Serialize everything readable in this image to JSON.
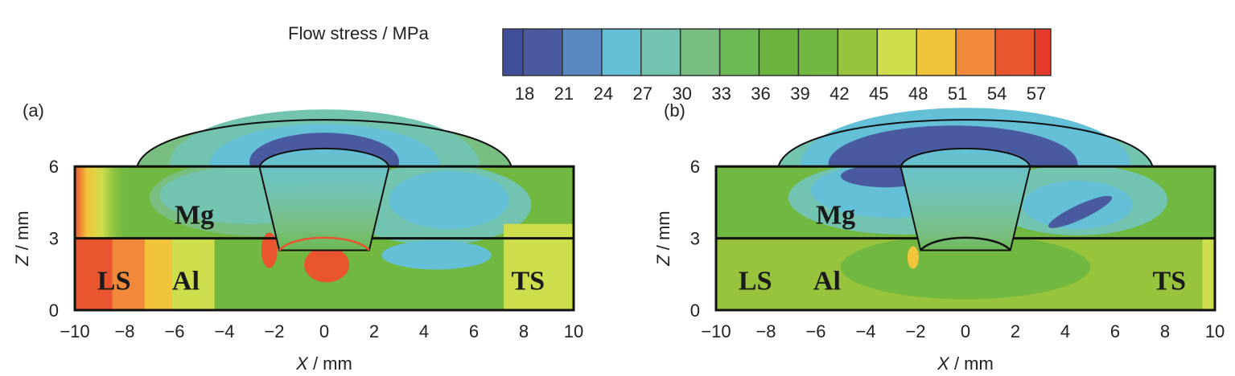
{
  "chart_data": {
    "type": "heatmap",
    "title": "Flow stress / MPa",
    "colorbar": {
      "label": "Flow stress / MPa",
      "ticks": [
        18,
        21,
        24,
        27,
        30,
        33,
        36,
        39,
        42,
        45,
        48,
        51,
        54,
        57
      ],
      "colors": [
        "#3f4f9a",
        "#4a5aa0",
        "#5a88c0",
        "#63c0d6",
        "#72c3b0",
        "#78be80",
        "#6cba55",
        "#6ab43e",
        "#70b840",
        "#98c33c",
        "#cddd4c",
        "#f2c43c",
        "#f08a3a",
        "#e8552f",
        "#e33a2c"
      ]
    },
    "panels": [
      {
        "label": "(a)",
        "xlabel_var": "X",
        "xlabel_unit": " / mm",
        "ylabel_var": "Z",
        "ylabel_unit": " / mm",
        "xlim": [
          -10,
          10
        ],
        "ylim": [
          0,
          6
        ],
        "xticks": [
          "−10",
          "−8",
          "−6",
          "−4",
          "−2",
          "0",
          "2",
          "4",
          "6",
          "8",
          "10"
        ],
        "yticks": [
          "0",
          "3",
          "6"
        ],
        "annotations": [
          "Mg",
          "LS",
          "Al",
          "TS"
        ]
      },
      {
        "label": "(b)",
        "xlabel_var": "X",
        "xlabel_unit": " / mm",
        "ylabel_var": "Z",
        "ylabel_unit": " / mm",
        "xlim": [
          -10,
          10
        ],
        "ylim": [
          0,
          6
        ],
        "xticks": [
          "−10",
          "−8",
          "−6",
          "−4",
          "−2",
          "0",
          "2",
          "4",
          "6",
          "8",
          "10"
        ],
        "yticks": [
          "0",
          "3",
          "6"
        ],
        "annotations": [
          "Mg",
          "LS",
          "Al",
          "TS"
        ]
      }
    ]
  }
}
